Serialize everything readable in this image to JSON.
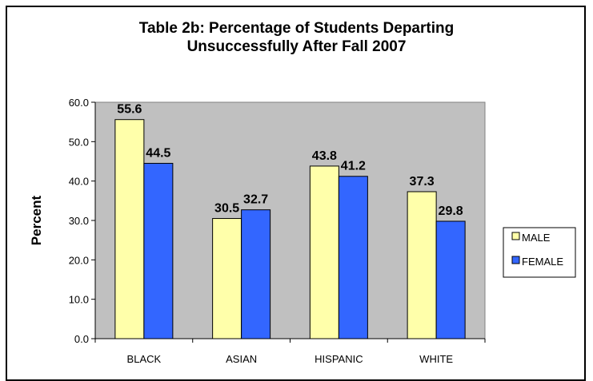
{
  "chart_data": {
    "type": "bar",
    "title": "Table 2b: Percentage of Students Departing",
    "subtitle": "Unsuccessfully After Fall 2007",
    "xlabel": "",
    "ylabel": "Percent",
    "ylim": [
      0,
      60
    ],
    "yticks": [
      "0.0",
      "10.0",
      "20.0",
      "30.0",
      "40.0",
      "50.0",
      "60.0"
    ],
    "categories": [
      "BLACK",
      "ASIAN",
      "HISPANIC",
      "WHITE"
    ],
    "series": [
      {
        "name": "MALE",
        "values": [
          55.6,
          30.5,
          43.8,
          37.3
        ],
        "labels": [
          "55.6",
          "30.5",
          "43.8",
          "37.3"
        ],
        "color": "#FFFFAA"
      },
      {
        "name": "FEMALE",
        "values": [
          44.5,
          32.7,
          41.2,
          29.8
        ],
        "labels": [
          "44.5",
          "32.7",
          "41.2",
          "29.8"
        ],
        "color": "#3366FF"
      }
    ],
    "grid": false,
    "plot_background": "#C0C0C0",
    "legend_position": "right"
  }
}
